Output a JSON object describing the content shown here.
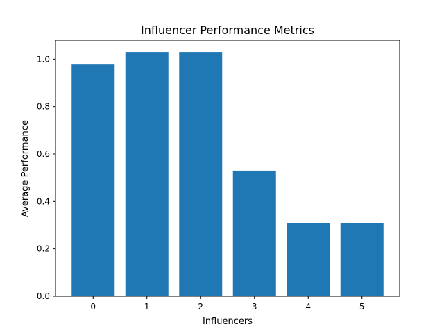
{
  "chart_data": {
    "type": "bar",
    "title": "Influencer Performance Metrics",
    "xlabel": "Influencers",
    "ylabel": "Average Performance",
    "categories": [
      "0",
      "1",
      "2",
      "3",
      "4",
      "5"
    ],
    "values": [
      0.98,
      1.03,
      1.03,
      0.53,
      0.31,
      0.31
    ],
    "ylim": [
      0,
      1.08
    ],
    "yticks": [
      "0.0",
      "0.2",
      "0.4",
      "0.6",
      "0.8",
      "1.0"
    ],
    "bar_color": "#1f77b4",
    "grid": false,
    "legend": false
  }
}
